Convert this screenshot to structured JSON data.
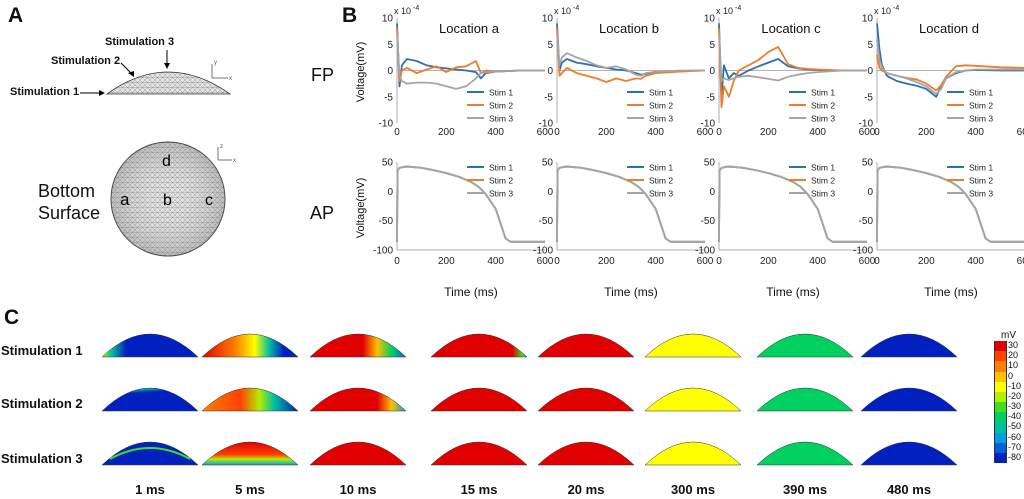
{
  "panels": {
    "a": "A",
    "b": "B",
    "c": "C"
  },
  "panel_a": {
    "stimulations": [
      "Stimulation 1",
      "Stimulation 2",
      "Stimulation 3"
    ],
    "bottom_surface": [
      "Bottom",
      "Surface"
    ],
    "locations": [
      "a",
      "b",
      "c",
      "d"
    ],
    "axis_letters": {
      "y": "y",
      "x": "x",
      "z": "z"
    }
  },
  "panel_b": {
    "row_labels": [
      "FP",
      "AP"
    ],
    "fp_ylabel": "Voltage(mV)",
    "ap_ylabel": "Voltage(mV)",
    "xlabel": "Time (ms)",
    "exponent": "x 10",
    "exponent_power": "-4",
    "legend": [
      "Stim 1",
      "Stim 2",
      "Stim 3"
    ],
    "colors": {
      "stim1": "#2f6fb5",
      "stim2": "#ed7d31",
      "stim3": "#a5a5a5"
    },
    "fp_y_ticks": [
      "10",
      "5",
      "0",
      "-5",
      "-10"
    ],
    "ap_y_ticks": [
      "50",
      "0",
      "-50",
      "-100"
    ],
    "x_ticks": [
      "0",
      "200",
      "400",
      "600"
    ]
  },
  "chart_data": [
    {
      "type": "line",
      "title": "Location a",
      "row": "FP",
      "xlim": [
        0,
        600
      ],
      "ylim": [
        -10,
        10
      ],
      "series": [
        {
          "name": "Stim 1",
          "x": [
            0,
            10,
            20,
            40,
            80,
            120,
            160,
            200,
            240,
            280,
            320,
            340,
            360,
            400,
            500,
            600
          ],
          "y": [
            9,
            -3,
            1,
            2.2,
            1.8,
            1,
            0.6,
            0.4,
            0.2,
            0,
            -0.3,
            -1.5,
            -0.5,
            -0.2,
            0,
            0
          ]
        },
        {
          "name": "Stim 2",
          "x": [
            0,
            10,
            20,
            40,
            80,
            120,
            160,
            200,
            240,
            280,
            320,
            340,
            360,
            400,
            500,
            600
          ],
          "y": [
            8,
            -2,
            0,
            0.5,
            -0.5,
            0.2,
            0.8,
            -0.3,
            0.6,
            0.8,
            1.8,
            -0.5,
            0,
            -0.2,
            0,
            0
          ]
        },
        {
          "name": "Stim 3",
          "x": [
            0,
            10,
            20,
            40,
            80,
            120,
            160,
            200,
            240,
            280,
            320,
            340,
            360,
            400,
            500,
            600
          ],
          "y": [
            7,
            -1,
            -2,
            -2.5,
            -2.3,
            -2.3,
            -2.5,
            -3,
            -3.5,
            -3,
            -1.5,
            -0.5,
            -0.3,
            -0.2,
            0,
            0
          ]
        }
      ]
    },
    {
      "type": "line",
      "title": "Location b",
      "row": "FP",
      "xlim": [
        0,
        600
      ],
      "ylim": [
        -10,
        10
      ],
      "series": [
        {
          "name": "Stim 1",
          "x": [
            0,
            10,
            20,
            40,
            80,
            120,
            160,
            200,
            240,
            280,
            320,
            340,
            360,
            400,
            500,
            600
          ],
          "y": [
            9,
            0,
            1.5,
            2.2,
            1.5,
            1.2,
            0.8,
            0.5,
            0.2,
            0,
            -0.5,
            -0.8,
            -0.6,
            -0.3,
            -0.1,
            0
          ]
        },
        {
          "name": "Stim 2",
          "x": [
            0,
            10,
            20,
            40,
            80,
            120,
            160,
            200,
            240,
            280,
            320,
            340,
            360,
            400,
            500,
            600
          ],
          "y": [
            8,
            -1,
            -0.5,
            0.5,
            -0.5,
            -1,
            -1.5,
            -2.2,
            -1.5,
            -2,
            -1.5,
            -1.6,
            -1,
            -0.5,
            -0.2,
            0
          ]
        },
        {
          "name": "Stim 3",
          "x": [
            0,
            10,
            20,
            40,
            80,
            120,
            160,
            200,
            240,
            280,
            320,
            340,
            360,
            400,
            500,
            600
          ],
          "y": [
            7,
            1,
            2.5,
            3.3,
            2.5,
            1.8,
            1,
            0.5,
            0.8,
            0.2,
            -0.8,
            -1,
            -0.5,
            -0.2,
            0,
            0
          ]
        }
      ]
    },
    {
      "type": "line",
      "title": "Location c",
      "row": "FP",
      "xlim": [
        0,
        600
      ],
      "ylim": [
        -10,
        10
      ],
      "series": [
        {
          "name": "Stim 1",
          "x": [
            0,
            10,
            20,
            40,
            60,
            80,
            120,
            160,
            200,
            240,
            280,
            320,
            360,
            400,
            500,
            600
          ],
          "y": [
            9,
            -5,
            1,
            -1.5,
            -0.5,
            -1,
            0,
            0.8,
            1.5,
            2.2,
            0.8,
            0.4,
            0.2,
            0.1,
            0,
            0
          ]
        },
        {
          "name": "Stim 2",
          "x": [
            0,
            10,
            20,
            40,
            60,
            80,
            120,
            160,
            200,
            240,
            280,
            320,
            360,
            400,
            500,
            600
          ],
          "y": [
            8,
            -7,
            -3,
            -5,
            -2,
            0,
            1,
            2,
            3.5,
            4.5,
            1.2,
            0.5,
            0.3,
            0.2,
            0,
            0
          ]
        },
        {
          "name": "Stim 3",
          "x": [
            0,
            10,
            20,
            40,
            60,
            80,
            120,
            160,
            200,
            240,
            280,
            320,
            360,
            400,
            500,
            600
          ],
          "y": [
            7,
            -2,
            -1.5,
            -1.8,
            -1.5,
            -1.2,
            -1,
            -1.3,
            -1.6,
            -1.9,
            -1.2,
            -0.8,
            -0.5,
            -0.3,
            0,
            0
          ]
        }
      ]
    },
    {
      "type": "line",
      "title": "Location d",
      "row": "FP",
      "xlim": [
        0,
        600
      ],
      "ylim": [
        -10,
        10
      ],
      "series": [
        {
          "name": "Stim 1",
          "x": [
            0,
            10,
            20,
            40,
            80,
            120,
            160,
            200,
            240,
            260,
            280,
            320,
            360,
            400,
            500,
            600
          ],
          "y": [
            9,
            4,
            1,
            -1,
            -2,
            -2.5,
            -2.9,
            -3.5,
            -5,
            -3,
            -1.5,
            -0.5,
            0,
            0.1,
            0,
            0
          ]
        },
        {
          "name": "Stim 2",
          "x": [
            0,
            10,
            20,
            40,
            80,
            120,
            160,
            200,
            240,
            260,
            280,
            320,
            360,
            400,
            500,
            600
          ],
          "y": [
            3,
            0.5,
            0,
            -0.5,
            -1,
            -1.4,
            -1.7,
            -2.5,
            -3.8,
            -2.8,
            -1.2,
            0.8,
            1,
            0.9,
            0.6,
            0.5
          ]
        },
        {
          "name": "Stim 3",
          "x": [
            0,
            10,
            20,
            40,
            80,
            120,
            160,
            200,
            240,
            260,
            280,
            320,
            360,
            400,
            500,
            600
          ],
          "y": [
            6,
            2,
            0.5,
            -0.5,
            -1,
            -1.5,
            -2.2,
            -3,
            -4.5,
            -3.5,
            -1.5,
            -0.3,
            0,
            0.2,
            0.2,
            0.2
          ]
        }
      ]
    },
    {
      "type": "line",
      "title": "",
      "row": "AP",
      "xlim": [
        0,
        600
      ],
      "ylim": [
        -100,
        50
      ],
      "series": [
        {
          "name": "Stim 1",
          "x": [
            0,
            2,
            10,
            30,
            50,
            100,
            150,
            200,
            250,
            300,
            330,
            360,
            400,
            420,
            440,
            460,
            600
          ],
          "y": [
            -86,
            35,
            40,
            42,
            42,
            40,
            36,
            31,
            25,
            16,
            8,
            -5,
            -30,
            -55,
            -80,
            -86,
            -86
          ]
        }
      ]
    },
    {
      "type": "line",
      "title": "",
      "row": "AP",
      "xlim": [
        0,
        600
      ],
      "ylim": [
        -100,
        50
      ],
      "series": [
        {
          "name": "Stim 1",
          "x": [
            0,
            2,
            10,
            30,
            50,
            100,
            150,
            200,
            250,
            300,
            330,
            360,
            400,
            420,
            440,
            460,
            600
          ],
          "y": [
            -86,
            35,
            40,
            42,
            42,
            40,
            36,
            31,
            25,
            16,
            8,
            -5,
            -30,
            -55,
            -80,
            -86,
            -86
          ]
        }
      ]
    },
    {
      "type": "line",
      "title": "",
      "row": "AP",
      "xlim": [
        0,
        600
      ],
      "ylim": [
        -100,
        50
      ],
      "series": [
        {
          "name": "Stim 1",
          "x": [
            0,
            2,
            10,
            30,
            50,
            100,
            150,
            200,
            250,
            300,
            330,
            360,
            400,
            420,
            440,
            460,
            600
          ],
          "y": [
            -86,
            35,
            40,
            42,
            42,
            40,
            36,
            31,
            25,
            16,
            8,
            -5,
            -30,
            -55,
            -80,
            -86,
            -86
          ]
        }
      ]
    },
    {
      "type": "line",
      "title": "",
      "row": "AP",
      "xlim": [
        0,
        600
      ],
      "ylim": [
        -100,
        50
      ],
      "series": [
        {
          "name": "Stim 1",
          "x": [
            0,
            2,
            10,
            30,
            50,
            100,
            150,
            200,
            250,
            300,
            330,
            360,
            400,
            420,
            440,
            460,
            600
          ],
          "y": [
            -86,
            35,
            40,
            42,
            42,
            40,
            36,
            31,
            25,
            16,
            8,
            -5,
            -30,
            -55,
            -80,
            -86,
            -86
          ]
        }
      ]
    }
  ],
  "panel_c": {
    "rows": [
      "Stimulation 1",
      "Stimulation 2",
      "Stimulation 3"
    ],
    "times": [
      "1 ms",
      "5 ms",
      "10 ms",
      "15 ms",
      "20 ms",
      "300 ms",
      "390 ms",
      "480 ms"
    ],
    "colorbar_title": "mV",
    "colorbar_ticks": [
      "30",
      "20",
      "10",
      "0",
      "-10",
      "-20",
      "-30",
      "-40",
      "-50",
      "-60",
      "-70",
      "-80"
    ],
    "colorbar_colors": [
      "#e00000",
      "#ff4000",
      "#ff8000",
      "#ffc000",
      "#ffff00",
      "#b0f000",
      "#40e020",
      "#00d060",
      "#00c0a0",
      "#00a0e0",
      "#0060e0",
      "#0020c0"
    ]
  }
}
